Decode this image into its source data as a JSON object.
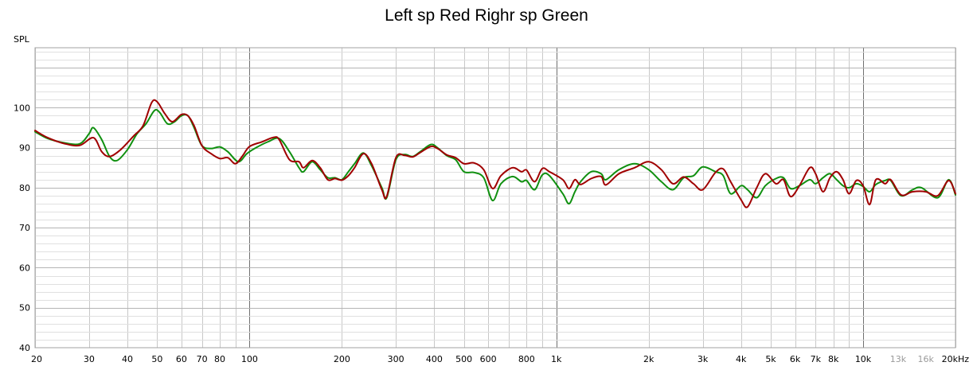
{
  "chart_data": {
    "type": "line",
    "title": "Left sp Red Righr sp Green",
    "ylabel": "SPL",
    "xlabel": "",
    "xscale": "log",
    "xlim": [
      20,
      20000
    ],
    "ylim": [
      40,
      115
    ],
    "grid": true,
    "yticks": [
      40,
      50,
      60,
      70,
      80,
      90,
      100
    ],
    "xticks": [
      {
        "v": 20,
        "label": "20"
      },
      {
        "v": 30,
        "label": "30"
      },
      {
        "v": 40,
        "label": "40"
      },
      {
        "v": 50,
        "label": "50"
      },
      {
        "v": 60,
        "label": "60"
      },
      {
        "v": 70,
        "label": "70"
      },
      {
        "v": 80,
        "label": "80"
      },
      {
        "v": 100,
        "label": "100"
      },
      {
        "v": 200,
        "label": "200"
      },
      {
        "v": 300,
        "label": "300"
      },
      {
        "v": 400,
        "label": "400"
      },
      {
        "v": 500,
        "label": "500"
      },
      {
        "v": 600,
        "label": "600"
      },
      {
        "v": 800,
        "label": "800"
      },
      {
        "v": 1000,
        "label": "1k"
      },
      {
        "v": 2000,
        "label": "2k"
      },
      {
        "v": 3000,
        "label": "3k"
      },
      {
        "v": 4000,
        "label": "4k"
      },
      {
        "v": 5000,
        "label": "5k"
      },
      {
        "v": 6000,
        "label": "6k"
      },
      {
        "v": 7000,
        "label": "7k"
      },
      {
        "v": 8000,
        "label": "8k"
      },
      {
        "v": 10000,
        "label": "10k"
      },
      {
        "v": 13000,
        "label": "13k",
        "minor": true
      },
      {
        "v": 16000,
        "label": "16k",
        "minor": true
      },
      {
        "v": 20000,
        "label": "20kHz"
      }
    ],
    "colors": {
      "left": "#a00000",
      "right": "#109010",
      "grid": "#c8c8c8",
      "grid_major": "#707070"
    },
    "series": [
      {
        "key": "left",
        "color": "#a00000",
        "points": [
          [
            20,
            94.3
          ],
          [
            22,
            92.5
          ],
          [
            25,
            91.0
          ],
          [
            28,
            90.6
          ],
          [
            31,
            92.5
          ],
          [
            33,
            89.0
          ],
          [
            35,
            87.8
          ],
          [
            38,
            89.5
          ],
          [
            42,
            93.0
          ],
          [
            45,
            95.5
          ],
          [
            48,
            101.3
          ],
          [
            50,
            101.5
          ],
          [
            53,
            98.5
          ],
          [
            56,
            96.5
          ],
          [
            60,
            98.3
          ],
          [
            63,
            98.0
          ],
          [
            66,
            95.5
          ],
          [
            70,
            90.5
          ],
          [
            75,
            88.5
          ],
          [
            80,
            87.3
          ],
          [
            85,
            87.5
          ],
          [
            90,
            86.0
          ],
          [
            95,
            88.0
          ],
          [
            100,
            90.3
          ],
          [
            110,
            91.5
          ],
          [
            120,
            92.6
          ],
          [
            125,
            92.0
          ],
          [
            135,
            87.0
          ],
          [
            145,
            86.5
          ],
          [
            150,
            85.0
          ],
          [
            160,
            86.8
          ],
          [
            170,
            85.0
          ],
          [
            180,
            82.0
          ],
          [
            190,
            82.3
          ],
          [
            200,
            81.9
          ],
          [
            210,
            83.0
          ],
          [
            220,
            85.0
          ],
          [
            235,
            88.5
          ],
          [
            250,
            86.0
          ],
          [
            270,
            79.5
          ],
          [
            280,
            77.8
          ],
          [
            300,
            87.5
          ],
          [
            320,
            88.1
          ],
          [
            340,
            87.7
          ],
          [
            360,
            88.8
          ],
          [
            390,
            90.3
          ],
          [
            410,
            89.8
          ],
          [
            440,
            88.2
          ],
          [
            470,
            87.5
          ],
          [
            500,
            86.0
          ],
          [
            540,
            86.2
          ],
          [
            580,
            84.5
          ],
          [
            620,
            79.8
          ],
          [
            660,
            83.0
          ],
          [
            720,
            85.0
          ],
          [
            770,
            84.0
          ],
          [
            800,
            84.4
          ],
          [
            850,
            81.5
          ],
          [
            900,
            84.8
          ],
          [
            950,
            84.0
          ],
          [
            1050,
            82.0
          ],
          [
            1100,
            79.8
          ],
          [
            1150,
            82.0
          ],
          [
            1200,
            80.8
          ],
          [
            1300,
            82.3
          ],
          [
            1400,
            82.8
          ],
          [
            1450,
            80.7
          ],
          [
            1600,
            83.5
          ],
          [
            1800,
            85.0
          ],
          [
            2000,
            86.5
          ],
          [
            2200,
            84.5
          ],
          [
            2400,
            81.0
          ],
          [
            2600,
            82.7
          ],
          [
            2800,
            81.0
          ],
          [
            3000,
            79.5
          ],
          [
            3300,
            83.8
          ],
          [
            3500,
            84.7
          ],
          [
            3700,
            81.5
          ],
          [
            4000,
            77.0
          ],
          [
            4200,
            75.2
          ],
          [
            4500,
            80.0
          ],
          [
            4800,
            83.5
          ],
          [
            5200,
            81.0
          ],
          [
            5500,
            82.0
          ],
          [
            5800,
            77.8
          ],
          [
            6200,
            80.5
          ],
          [
            6700,
            85.0
          ],
          [
            7000,
            83.5
          ],
          [
            7400,
            79.0
          ],
          [
            7800,
            82.5
          ],
          [
            8200,
            84.0
          ],
          [
            8600,
            82.0
          ],
          [
            9000,
            78.5
          ],
          [
            9500,
            81.8
          ],
          [
            10000,
            80.5
          ],
          [
            10500,
            75.8
          ],
          [
            11000,
            82.0
          ],
          [
            11800,
            81.0
          ],
          [
            12300,
            82.0
          ],
          [
            13300,
            78.2
          ],
          [
            14500,
            79.0
          ],
          [
            16000,
            79.0
          ],
          [
            17500,
            78.0
          ],
          [
            19000,
            81.8
          ],
          [
            20000,
            78.5
          ]
        ]
      },
      {
        "key": "right",
        "color": "#109010",
        "points": [
          [
            20,
            94.0
          ],
          [
            22,
            92.3
          ],
          [
            25,
            91.2
          ],
          [
            28,
            91.0
          ],
          [
            30,
            93.5
          ],
          [
            31,
            95.0
          ],
          [
            33,
            92.0
          ],
          [
            35,
            87.8
          ],
          [
            37,
            86.8
          ],
          [
            40,
            89.5
          ],
          [
            43,
            93.5
          ],
          [
            46,
            96.0
          ],
          [
            49,
            99.3
          ],
          [
            51,
            98.8
          ],
          [
            54,
            96.0
          ],
          [
            57,
            96.5
          ],
          [
            60,
            98.0
          ],
          [
            63,
            98.0
          ],
          [
            66,
            95.0
          ],
          [
            70,
            90.5
          ],
          [
            75,
            89.8
          ],
          [
            80,
            90.2
          ],
          [
            85,
            89.0
          ],
          [
            92,
            86.5
          ],
          [
            98,
            88.5
          ],
          [
            105,
            90.0
          ],
          [
            115,
            91.5
          ],
          [
            125,
            92.3
          ],
          [
            135,
            89.0
          ],
          [
            145,
            85.0
          ],
          [
            150,
            84.0
          ],
          [
            160,
            86.5
          ],
          [
            170,
            84.5
          ],
          [
            180,
            82.5
          ],
          [
            190,
            82.5
          ],
          [
            200,
            82.0
          ],
          [
            210,
            84.0
          ],
          [
            220,
            86.0
          ],
          [
            235,
            88.7
          ],
          [
            250,
            85.5
          ],
          [
            270,
            80.0
          ],
          [
            280,
            77.5
          ],
          [
            300,
            87.0
          ],
          [
            320,
            88.3
          ],
          [
            340,
            87.8
          ],
          [
            360,
            89.0
          ],
          [
            390,
            90.8
          ],
          [
            410,
            90.0
          ],
          [
            440,
            88.0
          ],
          [
            470,
            87.0
          ],
          [
            500,
            84.0
          ],
          [
            540,
            83.8
          ],
          [
            580,
            82.5
          ],
          [
            620,
            76.8
          ],
          [
            660,
            81.0
          ],
          [
            720,
            82.8
          ],
          [
            770,
            81.5
          ],
          [
            800,
            81.8
          ],
          [
            850,
            79.5
          ],
          [
            900,
            83.2
          ],
          [
            950,
            83.0
          ],
          [
            1050,
            78.5
          ],
          [
            1100,
            76.0
          ],
          [
            1150,
            79.0
          ],
          [
            1200,
            81.5
          ],
          [
            1300,
            84.0
          ],
          [
            1400,
            83.5
          ],
          [
            1450,
            82.0
          ],
          [
            1600,
            84.5
          ],
          [
            1800,
            86.0
          ],
          [
            2000,
            84.5
          ],
          [
            2200,
            81.5
          ],
          [
            2400,
            79.5
          ],
          [
            2600,
            82.5
          ],
          [
            2800,
            83.0
          ],
          [
            3000,
            85.2
          ],
          [
            3300,
            84.0
          ],
          [
            3500,
            83.0
          ],
          [
            3700,
            78.5
          ],
          [
            4000,
            80.5
          ],
          [
            4200,
            79.5
          ],
          [
            4500,
            77.5
          ],
          [
            4800,
            80.5
          ],
          [
            5200,
            82.3
          ],
          [
            5500,
            82.5
          ],
          [
            5800,
            79.8
          ],
          [
            6200,
            80.5
          ],
          [
            6700,
            82.0
          ],
          [
            7000,
            81.0
          ],
          [
            7400,
            82.5
          ],
          [
            7800,
            83.5
          ],
          [
            8200,
            82.0
          ],
          [
            8600,
            80.5
          ],
          [
            9000,
            80.0
          ],
          [
            9500,
            81.0
          ],
          [
            10000,
            80.3
          ],
          [
            10500,
            79.0
          ],
          [
            11000,
            80.8
          ],
          [
            11800,
            81.8
          ],
          [
            12300,
            81.8
          ],
          [
            13300,
            78.0
          ],
          [
            14500,
            79.5
          ],
          [
            15500,
            80.0
          ],
          [
            17500,
            77.5
          ],
          [
            19000,
            82.0
          ],
          [
            20000,
            78.2
          ]
        ]
      }
    ]
  }
}
